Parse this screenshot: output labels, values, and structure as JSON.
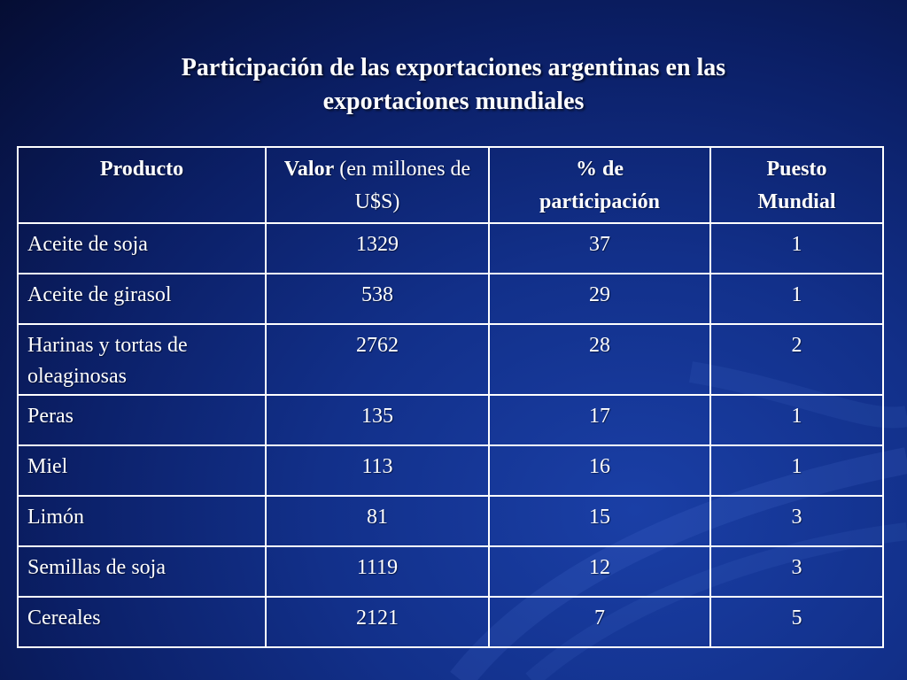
{
  "title": {
    "line1": "Participación de las exportaciones argentinas en las",
    "line2": "exportaciones mundiales"
  },
  "table": {
    "headers": {
      "producto": "Producto",
      "valor_bold": "Valor",
      "valor_rest": " (en millones de U$S)",
      "participacion_line1": "% de",
      "participacion_line2": "participación",
      "puesto_line1": "Puesto",
      "puesto_line2": "Mundial"
    },
    "rows": [
      {
        "producto": "Aceite de soja",
        "valor": "1329",
        "participacion": "37",
        "puesto": "1"
      },
      {
        "producto": "Aceite de girasol",
        "valor": "538",
        "participacion": "29",
        "puesto": "1"
      },
      {
        "producto": "Harinas y tortas de oleaginosas",
        "valor": "2762",
        "participacion": "28",
        "puesto": "2"
      },
      {
        "producto": "Peras",
        "valor": "135",
        "participacion": "17",
        "puesto": "1"
      },
      {
        "producto": "Miel",
        "valor": "113",
        "participacion": "16",
        "puesto": "1"
      },
      {
        "producto": "Limón",
        "valor": "81",
        "participacion": "15",
        "puesto": "3"
      },
      {
        "producto": "Semillas de soja",
        "valor": "1119",
        "participacion": "12",
        "puesto": "3"
      },
      {
        "producto": "Cereales",
        "valor": "2121",
        "participacion": "7",
        "puesto": "5"
      }
    ]
  }
}
